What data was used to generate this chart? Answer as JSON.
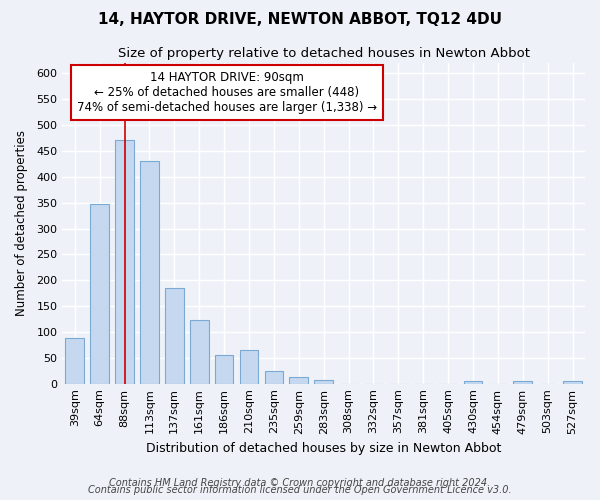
{
  "title": "14, HAYTOR DRIVE, NEWTON ABBOT, TQ12 4DU",
  "subtitle": "Size of property relative to detached houses in Newton Abbot",
  "xlabel": "Distribution of detached houses by size in Newton Abbot",
  "ylabel": "Number of detached properties",
  "categories": [
    "39sqm",
    "64sqm",
    "88sqm",
    "113sqm",
    "137sqm",
    "161sqm",
    "186sqm",
    "210sqm",
    "235sqm",
    "259sqm",
    "283sqm",
    "308sqm",
    "332sqm",
    "357sqm",
    "381sqm",
    "405sqm",
    "430sqm",
    "454sqm",
    "479sqm",
    "503sqm",
    "527sqm"
  ],
  "values": [
    88,
    348,
    472,
    430,
    185,
    123,
    56,
    65,
    25,
    12,
    8,
    0,
    0,
    0,
    0,
    0,
    5,
    0,
    5,
    0,
    5
  ],
  "bar_color": "#c5d8f0",
  "bar_edge_color": "#7aaad4",
  "vline_x_index": 2,
  "vline_color": "#cc0000",
  "annotation_text": "14 HAYTOR DRIVE: 90sqm\n← 25% of detached houses are smaller (448)\n74% of semi-detached houses are larger (1,338) →",
  "annotation_box_color": "#ffffff",
  "annotation_box_edge": "#cc0000",
  "ylim": [
    0,
    620
  ],
  "yticks": [
    0,
    50,
    100,
    150,
    200,
    250,
    300,
    350,
    400,
    450,
    500,
    550,
    600
  ],
  "footer_line1": "Contains HM Land Registry data © Crown copyright and database right 2024.",
  "footer_line2": "Contains public sector information licensed under the Open Government Licence v3.0.",
  "bg_color": "#eef2f8",
  "grid_color": "#ffffff",
  "title_fontsize": 11,
  "subtitle_fontsize": 9.5,
  "xlabel_fontsize": 9,
  "ylabel_fontsize": 8.5,
  "tick_fontsize": 8,
  "annotation_fontsize": 8.5,
  "footer_fontsize": 7
}
